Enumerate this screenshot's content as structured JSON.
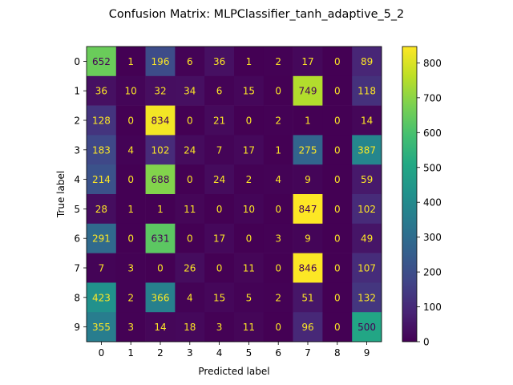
{
  "chart_data": {
    "type": "heatmap",
    "title": "Confusion Matrix: MLPClassifier_tanh_adaptive_5_2",
    "xlabel": "Predicted label",
    "ylabel": "True label",
    "x_categories": [
      "0",
      "1",
      "2",
      "3",
      "4",
      "5",
      "6",
      "7",
      "8",
      "9"
    ],
    "y_categories": [
      "0",
      "1",
      "2",
      "3",
      "4",
      "5",
      "6",
      "7",
      "8",
      "9"
    ],
    "values": [
      [
        652,
        1,
        196,
        6,
        36,
        1,
        2,
        17,
        0,
        89
      ],
      [
        36,
        10,
        32,
        34,
        6,
        15,
        0,
        749,
        0,
        118
      ],
      [
        128,
        0,
        834,
        0,
        21,
        0,
        2,
        1,
        0,
        14
      ],
      [
        183,
        4,
        102,
        24,
        7,
        17,
        1,
        275,
        0,
        387
      ],
      [
        214,
        0,
        688,
        0,
        24,
        2,
        4,
        9,
        0,
        59
      ],
      [
        28,
        1,
        1,
        11,
        0,
        10,
        0,
        847,
        0,
        102
      ],
      [
        291,
        0,
        631,
        0,
        17,
        0,
        3,
        9,
        0,
        49
      ],
      [
        7,
        3,
        0,
        26,
        0,
        11,
        0,
        846,
        0,
        107
      ],
      [
        423,
        2,
        366,
        4,
        15,
        5,
        2,
        51,
        0,
        132
      ],
      [
        355,
        3,
        14,
        18,
        3,
        11,
        0,
        96,
        0,
        500
      ]
    ],
    "colormap": "viridis",
    "colorbar": {
      "range": [
        0,
        847
      ],
      "ticks": [
        0,
        100,
        200,
        300,
        400,
        500,
        600,
        700,
        800
      ]
    },
    "grid": false,
    "legend": "none"
  }
}
